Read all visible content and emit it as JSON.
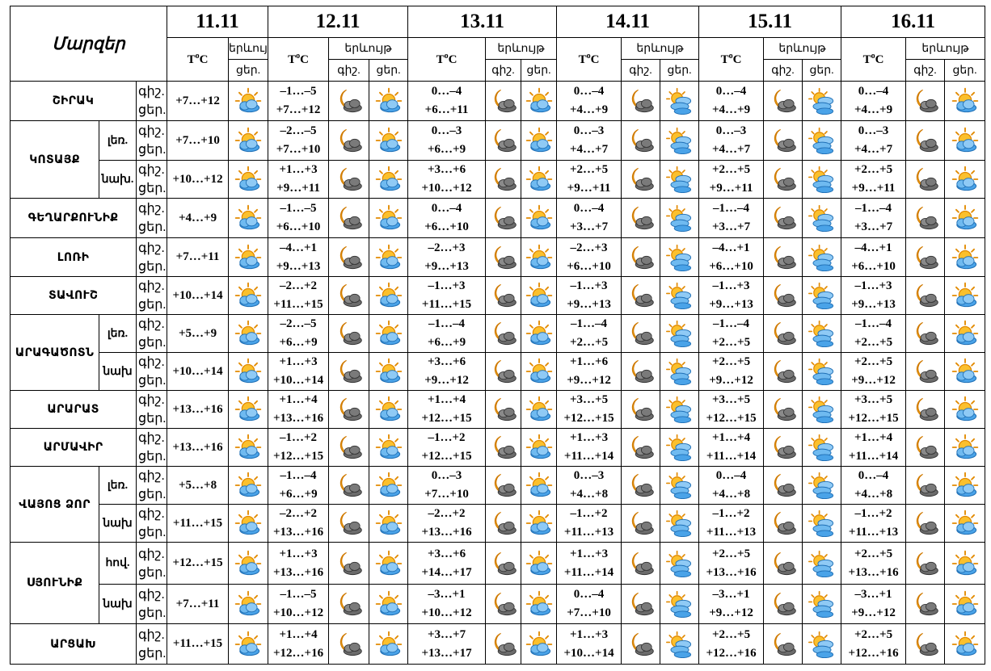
{
  "title": "Մարզեր",
  "temp_label": "T",
  "temp_sup": "o",
  "temp_unit": "C",
  "event_label": "երևույթ",
  "night_label": "գիշ.",
  "day_label": "ցեր.",
  "dates": [
    "11.11",
    "12.11",
    "13.11",
    "14.11",
    "15.11",
    "16.11"
  ],
  "rows": [
    {
      "region": "ՇԻՐԱԿ",
      "sub": "",
      "cells": [
        {
          "night": "",
          "day": "+7…+12",
          "icons": [
            "sun-cloud"
          ]
        },
        {
          "night": "–1…–5",
          "day": "+7…+12",
          "icons": [
            "moon-cloud",
            "sun-cloud"
          ]
        },
        {
          "night": "0…–4",
          "day": "+6…+11",
          "icons": [
            "moon-cloud",
            "sun-cloud"
          ]
        },
        {
          "night": "0…–4",
          "day": "+4…+9",
          "icons": [
            "moon-cloud",
            "sun-clouds"
          ]
        },
        {
          "night": "0…–4",
          "day": "+4…+9",
          "icons": [
            "moon-cloud",
            "sun-clouds"
          ]
        },
        {
          "night": "0…–4",
          "day": "+4…+9",
          "icons": [
            "moon-cloud",
            "sun-cloud"
          ]
        }
      ]
    },
    {
      "region": "ԿՈՏԱՅՔ",
      "sub": "լեռ.",
      "cells": [
        {
          "night": "",
          "day": "+7…+10",
          "icons": [
            "sun-cloud"
          ]
        },
        {
          "night": "–2…–5",
          "day": "+7…+10",
          "icons": [
            "moon-cloud",
            "sun-cloud"
          ]
        },
        {
          "night": "0…–3",
          "day": "+6…+9",
          "icons": [
            "moon-cloud",
            "sun-cloud"
          ]
        },
        {
          "night": "0…–3",
          "day": "+4…+7",
          "icons": [
            "moon-cloud",
            "sun-clouds"
          ]
        },
        {
          "night": "0…–3",
          "day": "+4…+7",
          "icons": [
            "moon-cloud",
            "sun-clouds"
          ]
        },
        {
          "night": "0…–3",
          "day": "+4…+7",
          "icons": [
            "moon-cloud",
            "sun-cloud"
          ]
        }
      ]
    },
    {
      "region": "",
      "sub": "նախ.",
      "cells": [
        {
          "night": "",
          "day": "+10…+12",
          "icons": [
            "sun-cloud"
          ]
        },
        {
          "night": "+1…+3",
          "day": "+9…+11",
          "icons": [
            "moon-cloud",
            "sun-cloud"
          ]
        },
        {
          "night": "+3…+6",
          "day": "+10…+12",
          "icons": [
            "moon-cloud",
            "sun-cloud"
          ]
        },
        {
          "night": "+2…+5",
          "day": "+9…+11",
          "icons": [
            "moon-cloud",
            "sun-clouds"
          ]
        },
        {
          "night": "+2…+5",
          "day": "+9…+11",
          "icons": [
            "moon-cloud",
            "sun-clouds"
          ]
        },
        {
          "night": "+2…+5",
          "day": "+9…+11",
          "icons": [
            "moon-cloud",
            "sun-cloud"
          ]
        }
      ]
    },
    {
      "region": "ԳԵՂԱՐՔՈՒՆԻՔ",
      "sub": "",
      "cells": [
        {
          "night": "",
          "day": "+4…+9",
          "icons": [
            "sun-cloud"
          ]
        },
        {
          "night": "–1…–5",
          "day": "+6…+10",
          "icons": [
            "moon-cloud",
            "sun-cloud"
          ]
        },
        {
          "night": "0…–4",
          "day": "+6…+10",
          "icons": [
            "moon-cloud",
            "sun-cloud"
          ]
        },
        {
          "night": "0…–4",
          "day": "+3…+7",
          "icons": [
            "moon-cloud",
            "sun-clouds"
          ]
        },
        {
          "night": "–1…–4",
          "day": "+3…+7",
          "icons": [
            "moon-cloud",
            "sun-clouds"
          ]
        },
        {
          "night": "–1…–4",
          "day": "+3…+7",
          "icons": [
            "moon-cloud",
            "sun-cloud"
          ]
        }
      ]
    },
    {
      "region": "ԼՈՌԻ",
      "sub": "",
      "cells": [
        {
          "night": "",
          "day": "+7…+11",
          "icons": [
            "sun-cloud"
          ]
        },
        {
          "night": "–4…+1",
          "day": "+9…+13",
          "icons": [
            "moon-cloud",
            "sun-cloud"
          ]
        },
        {
          "night": "–2…+3",
          "day": "+9…+13",
          "icons": [
            "moon-cloud",
            "sun-cloud"
          ]
        },
        {
          "night": "–2…+3",
          "day": "+6…+10",
          "icons": [
            "moon-cloud",
            "sun-clouds"
          ]
        },
        {
          "night": "–4…+1",
          "day": "+6…+10",
          "icons": [
            "moon-cloud",
            "sun-clouds"
          ]
        },
        {
          "night": "–4…+1",
          "day": "+6…+10",
          "icons": [
            "moon-cloud",
            "sun-cloud"
          ]
        }
      ]
    },
    {
      "region": "ՏԱՎՈՒՇ",
      "sub": "",
      "cells": [
        {
          "night": "",
          "day": "+10…+14",
          "icons": [
            "sun-cloud"
          ]
        },
        {
          "night": "–2…+2",
          "day": "+11…+15",
          "icons": [
            "moon-cloud",
            "sun-cloud"
          ]
        },
        {
          "night": "–1…+3",
          "day": "+11…+15",
          "icons": [
            "moon-cloud",
            "sun-cloud"
          ]
        },
        {
          "night": "–1…+3",
          "day": "+9…+13",
          "icons": [
            "moon-cloud",
            "sun-clouds"
          ]
        },
        {
          "night": "–1…+3",
          "day": "+9…+13",
          "icons": [
            "moon-cloud",
            "sun-clouds"
          ]
        },
        {
          "night": "–1…+3",
          "day": "+9…+13",
          "icons": [
            "moon-cloud",
            "sun-cloud"
          ]
        }
      ]
    },
    {
      "region": "ԱՐԱԳԱԾՈՏՆ",
      "sub": "լեռ.",
      "cells": [
        {
          "night": "",
          "day": "+5…+9",
          "icons": [
            "sun-cloud"
          ]
        },
        {
          "night": "–2…–5",
          "day": "+6…+9",
          "icons": [
            "moon-cloud",
            "sun-cloud"
          ]
        },
        {
          "night": "–1…–4",
          "day": "+6…+9",
          "icons": [
            "moon-cloud",
            "sun-cloud"
          ]
        },
        {
          "night": "–1…–4",
          "day": "+2…+5",
          "icons": [
            "moon-cloud",
            "sun-clouds"
          ]
        },
        {
          "night": "–1…–4",
          "day": "+2…+5",
          "icons": [
            "moon-cloud",
            "sun-clouds"
          ]
        },
        {
          "night": "–1…–4",
          "day": "+2…+5",
          "icons": [
            "moon-cloud",
            "sun-cloud"
          ]
        }
      ]
    },
    {
      "region": "",
      "sub": "նախ",
      "cells": [
        {
          "night": "",
          "day": "+10…+14",
          "icons": [
            "sun-cloud"
          ]
        },
        {
          "night": "+1…+3",
          "day": "+10…+14",
          "icons": [
            "moon-cloud",
            "sun-cloud"
          ]
        },
        {
          "night": "+3…+6",
          "day": "+9…+12",
          "icons": [
            "moon-cloud",
            "sun-cloud"
          ]
        },
        {
          "night": "+1…+6",
          "day": "+9…+12",
          "icons": [
            "moon-cloud",
            "sun-clouds"
          ]
        },
        {
          "night": "+2…+5",
          "day": "+9…+12",
          "icons": [
            "moon-cloud",
            "sun-clouds"
          ]
        },
        {
          "night": "+2…+5",
          "day": "+9…+12",
          "icons": [
            "moon-cloud",
            "sun-cloud"
          ]
        }
      ]
    },
    {
      "region": "ԱՐԱՐԱՏ",
      "sub": "",
      "cells": [
        {
          "night": "",
          "day": "+13…+16",
          "icons": [
            "sun-cloud"
          ]
        },
        {
          "night": "+1…+4",
          "day": "+13…+16",
          "icons": [
            "moon-cloud",
            "sun-cloud"
          ]
        },
        {
          "night": "+1…+4",
          "day": "+12…+15",
          "icons": [
            "moon-cloud",
            "sun-cloud"
          ]
        },
        {
          "night": "+3…+5",
          "day": "+12…+15",
          "icons": [
            "moon-cloud",
            "sun-clouds"
          ]
        },
        {
          "night": "+3…+5",
          "day": "+12…+15",
          "icons": [
            "moon-cloud",
            "sun-clouds"
          ]
        },
        {
          "night": "+3…+5",
          "day": "+12…+15",
          "icons": [
            "moon-cloud",
            "sun-cloud"
          ]
        }
      ]
    },
    {
      "region": "ԱՐՄԱՎԻՐ",
      "sub": "",
      "cells": [
        {
          "night": "",
          "day": "+13…+16",
          "icons": [
            "sun-cloud"
          ]
        },
        {
          "night": "–1…+2",
          "day": "+12…+15",
          "icons": [
            "moon-cloud",
            "sun-cloud"
          ]
        },
        {
          "night": "–1…+2",
          "day": "+12…+15",
          "icons": [
            "moon-cloud",
            "sun-cloud"
          ]
        },
        {
          "night": "+1…+3",
          "day": "+11…+14",
          "icons": [
            "moon-cloud",
            "sun-clouds"
          ]
        },
        {
          "night": "+1…+4",
          "day": "+11…+14",
          "icons": [
            "moon-cloud",
            "sun-clouds"
          ]
        },
        {
          "night": "+1…+4",
          "day": "+11…+14",
          "icons": [
            "moon-cloud",
            "sun-cloud"
          ]
        }
      ]
    },
    {
      "region": "ՎԱՅՈՑ ՁՈՐ",
      "sub": "լեռ.",
      "cells": [
        {
          "night": "",
          "day": "+5…+8",
          "icons": [
            "sun-cloud"
          ]
        },
        {
          "night": "–1…–4",
          "day": "+6…+9",
          "icons": [
            "moon-cloud",
            "sun-cloud"
          ]
        },
        {
          "night": "0…–3",
          "day": "+7…+10",
          "icons": [
            "moon-cloud",
            "sun-cloud"
          ]
        },
        {
          "night": "0…–3",
          "day": "+4…+8",
          "icons": [
            "moon-cloud",
            "sun-clouds"
          ]
        },
        {
          "night": "0…–4",
          "day": "+4…+8",
          "icons": [
            "moon-cloud",
            "sun-clouds"
          ]
        },
        {
          "night": "0…–4",
          "day": "+4…+8",
          "icons": [
            "moon-cloud",
            "sun-cloud"
          ]
        }
      ]
    },
    {
      "region": "",
      "sub": "նախ",
      "cells": [
        {
          "night": "",
          "day": "+11…+15",
          "icons": [
            "sun-cloud"
          ]
        },
        {
          "night": "–2…+2",
          "day": "+13…+16",
          "icons": [
            "moon-cloud",
            "sun-cloud"
          ]
        },
        {
          "night": "–2…+2",
          "day": "+13…+16",
          "icons": [
            "moon-cloud",
            "sun-cloud"
          ]
        },
        {
          "night": "–1…+2",
          "day": "+11…+13",
          "icons": [
            "moon-cloud",
            "sun-clouds"
          ]
        },
        {
          "night": "–1…+2",
          "day": "+11…+13",
          "icons": [
            "moon-cloud",
            "sun-clouds"
          ]
        },
        {
          "night": "–1…+2",
          "day": "+11…+13",
          "icons": [
            "moon-cloud",
            "sun-cloud"
          ]
        }
      ]
    },
    {
      "region": "ՍՅՈՒՆԻՔ",
      "sub": "հով.",
      "cells": [
        {
          "night": "",
          "day": "+12…+15",
          "icons": [
            "sun-cloud"
          ]
        },
        {
          "night": "+1…+3",
          "day": "+13…+16",
          "icons": [
            "moon-cloud",
            "sun-cloud"
          ]
        },
        {
          "night": "+3…+6",
          "day": "+14…+17",
          "icons": [
            "moon-cloud",
            "sun-cloud"
          ]
        },
        {
          "night": "+1…+3",
          "day": "+11…+14",
          "icons": [
            "moon-cloud",
            "sun-clouds"
          ]
        },
        {
          "night": "+2…+5",
          "day": "+13…+16",
          "icons": [
            "moon-cloud",
            "sun-clouds"
          ]
        },
        {
          "night": "+2…+5",
          "day": "+13…+16",
          "icons": [
            "moon-cloud",
            "sun-cloud"
          ]
        }
      ]
    },
    {
      "region": "",
      "sub": "նախ",
      "cells": [
        {
          "night": "",
          "day": "+7…+11",
          "icons": [
            "sun-cloud"
          ]
        },
        {
          "night": "–1…–5",
          "day": "+10…+12",
          "icons": [
            "moon-cloud",
            "sun-cloud"
          ]
        },
        {
          "night": "–3…+1",
          "day": "+10…+12",
          "icons": [
            "moon-cloud",
            "sun-cloud"
          ]
        },
        {
          "night": "0…–4",
          "day": "+7…+10",
          "icons": [
            "moon-cloud",
            "sun-clouds"
          ]
        },
        {
          "night": "–3…+1",
          "day": "+9…+12",
          "icons": [
            "moon-cloud",
            "sun-clouds"
          ]
        },
        {
          "night": "–3…+1",
          "day": "+9…+12",
          "icons": [
            "moon-cloud",
            "sun-cloud"
          ]
        }
      ]
    },
    {
      "region": "ԱՐՑԱԽ",
      "sub": "",
      "cells": [
        {
          "night": "",
          "day": "+11…+15",
          "icons": [
            "sun-cloud"
          ]
        },
        {
          "night": "+1…+4",
          "day": "+12…+16",
          "icons": [
            "moon-cloud",
            "sun-cloud"
          ]
        },
        {
          "night": "+3…+7",
          "day": "+13…+17",
          "icons": [
            "moon-cloud",
            "sun-cloud"
          ]
        },
        {
          "night": "+1…+3",
          "day": "+10…+14",
          "icons": [
            "moon-cloud",
            "sun-clouds"
          ]
        },
        {
          "night": "+2…+5",
          "day": "+12…+16",
          "icons": [
            "moon-cloud",
            "sun-clouds"
          ]
        },
        {
          "night": "+2…+5",
          "day": "+12…+16",
          "icons": [
            "moon-cloud",
            "sun-cloud"
          ]
        }
      ]
    }
  ]
}
